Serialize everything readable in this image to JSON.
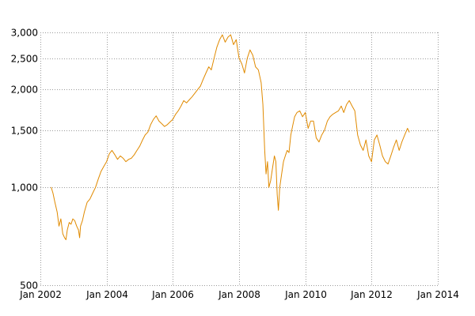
{
  "chart_data": {
    "type": "line",
    "title": "",
    "xlabel": "",
    "ylabel": "",
    "y_scale": "log",
    "xlim": [
      "2002-01-01",
      "2014-01-01"
    ],
    "ylim": [
      500,
      3000
    ],
    "grid": true,
    "x_ticks": [
      {
        "date": "2002-01-01",
        "label": "Jan 2002"
      },
      {
        "date": "2004-01-01",
        "label": "Jan 2004"
      },
      {
        "date": "2006-01-01",
        "label": "Jan 2006"
      },
      {
        "date": "2008-01-01",
        "label": "Jan 2008"
      },
      {
        "date": "2010-01-01",
        "label": "Jan 2010"
      },
      {
        "date": "2012-01-01",
        "label": "Jan 2012"
      },
      {
        "date": "2014-01-01",
        "label": "Jan 2014"
      }
    ],
    "y_ticks": [
      {
        "value": 500,
        "label": "500"
      },
      {
        "value": 1000,
        "label": "1,000"
      },
      {
        "value": 1500,
        "label": "1,500"
      },
      {
        "value": 2000,
        "label": "2,000"
      },
      {
        "value": 2500,
        "label": "2,500"
      },
      {
        "value": 3000,
        "label": "3,000"
      }
    ],
    "series": [
      {
        "color": "#e08a00",
        "points": [
          [
            "2002-05-01",
            1000
          ],
          [
            "2002-05-20",
            960
          ],
          [
            "2002-06-10",
            900
          ],
          [
            "2002-07-05",
            840
          ],
          [
            "2002-07-25",
            760
          ],
          [
            "2002-08-15",
            800
          ],
          [
            "2002-09-05",
            720
          ],
          [
            "2002-09-25",
            700
          ],
          [
            "2002-10-10",
            690
          ],
          [
            "2002-10-25",
            740
          ],
          [
            "2002-11-15",
            780
          ],
          [
            "2002-12-05",
            770
          ],
          [
            "2002-12-25",
            800
          ],
          [
            "2003-01-15",
            790
          ],
          [
            "2003-02-05",
            760
          ],
          [
            "2003-02-25",
            740
          ],
          [
            "2003-03-10",
            700
          ],
          [
            "2003-03-20",
            760
          ],
          [
            "2003-04-10",
            790
          ],
          [
            "2003-05-01",
            840
          ],
          [
            "2003-06-01",
            900
          ],
          [
            "2003-07-01",
            920
          ],
          [
            "2003-08-01",
            960
          ],
          [
            "2003-09-01",
            1000
          ],
          [
            "2003-10-01",
            1060
          ],
          [
            "2003-11-01",
            1120
          ],
          [
            "2003-12-01",
            1160
          ],
          [
            "2004-01-01",
            1200
          ],
          [
            "2004-02-01",
            1270
          ],
          [
            "2004-03-01",
            1300
          ],
          [
            "2004-04-01",
            1260
          ],
          [
            "2004-05-01",
            1220
          ],
          [
            "2004-06-01",
            1250
          ],
          [
            "2004-07-01",
            1230
          ],
          [
            "2004-08-01",
            1200
          ],
          [
            "2004-09-01",
            1220
          ],
          [
            "2004-10-01",
            1230
          ],
          [
            "2004-11-01",
            1260
          ],
          [
            "2004-12-01",
            1300
          ],
          [
            "2005-01-01",
            1340
          ],
          [
            "2005-02-01",
            1400
          ],
          [
            "2005-03-01",
            1450
          ],
          [
            "2005-04-01",
            1480
          ],
          [
            "2005-05-01",
            1560
          ],
          [
            "2005-06-01",
            1620
          ],
          [
            "2005-07-01",
            1660
          ],
          [
            "2005-08-01",
            1600
          ],
          [
            "2005-09-01",
            1570
          ],
          [
            "2005-10-01",
            1540
          ],
          [
            "2005-11-01",
            1560
          ],
          [
            "2005-12-01",
            1590
          ],
          [
            "2006-01-01",
            1620
          ],
          [
            "2006-02-01",
            1680
          ],
          [
            "2006-03-01",
            1720
          ],
          [
            "2006-04-01",
            1780
          ],
          [
            "2006-05-01",
            1850
          ],
          [
            "2006-06-01",
            1820
          ],
          [
            "2006-07-01",
            1860
          ],
          [
            "2006-08-01",
            1900
          ],
          [
            "2006-09-01",
            1950
          ],
          [
            "2006-10-01",
            2000
          ],
          [
            "2006-11-01",
            2050
          ],
          [
            "2006-12-01",
            2150
          ],
          [
            "2007-01-01",
            2250
          ],
          [
            "2007-02-01",
            2350
          ],
          [
            "2007-03-01",
            2300
          ],
          [
            "2007-04-01",
            2500
          ],
          [
            "2007-05-01",
            2700
          ],
          [
            "2007-06-01",
            2850
          ],
          [
            "2007-07-01",
            2950
          ],
          [
            "2007-08-01",
            2800
          ],
          [
            "2007-09-01",
            2900
          ],
          [
            "2007-10-01",
            2950
          ],
          [
            "2007-11-01",
            2750
          ],
          [
            "2007-12-01",
            2850
          ],
          [
            "2008-01-01",
            2500
          ],
          [
            "2008-02-01",
            2400
          ],
          [
            "2008-03-01",
            2250
          ],
          [
            "2008-04-01",
            2500
          ],
          [
            "2008-05-01",
            2650
          ],
          [
            "2008-06-01",
            2550
          ],
          [
            "2008-07-01",
            2350
          ],
          [
            "2008-08-01",
            2300
          ],
          [
            "2008-09-01",
            2100
          ],
          [
            "2008-09-20",
            1800
          ],
          [
            "2008-10-10",
            1300
          ],
          [
            "2008-10-25",
            1100
          ],
          [
            "2008-11-10",
            1200
          ],
          [
            "2008-11-25",
            1000
          ],
          [
            "2008-12-15",
            1050
          ],
          [
            "2009-01-05",
            1150
          ],
          [
            "2009-01-25",
            1250
          ],
          [
            "2009-02-10",
            1200
          ],
          [
            "2009-02-25",
            950
          ],
          [
            "2009-03-10",
            850
          ],
          [
            "2009-03-25",
            1000
          ],
          [
            "2009-04-15",
            1100
          ],
          [
            "2009-05-05",
            1200
          ],
          [
            "2009-05-25",
            1250
          ],
          [
            "2009-06-15",
            1300
          ],
          [
            "2009-07-05",
            1280
          ],
          [
            "2009-07-25",
            1450
          ],
          [
            "2009-08-15",
            1550
          ],
          [
            "2009-09-05",
            1650
          ],
          [
            "2009-10-01",
            1700
          ],
          [
            "2009-11-01",
            1720
          ],
          [
            "2009-12-01",
            1650
          ],
          [
            "2010-01-01",
            1700
          ],
          [
            "2010-02-01",
            1520
          ],
          [
            "2010-03-01",
            1600
          ],
          [
            "2010-04-01",
            1600
          ],
          [
            "2010-05-01",
            1420
          ],
          [
            "2010-06-01",
            1380
          ],
          [
            "2010-07-01",
            1450
          ],
          [
            "2010-08-01",
            1500
          ],
          [
            "2010-09-01",
            1600
          ],
          [
            "2010-10-01",
            1650
          ],
          [
            "2010-11-01",
            1680
          ],
          [
            "2010-12-01",
            1700
          ],
          [
            "2011-01-01",
            1720
          ],
          [
            "2011-02-01",
            1780
          ],
          [
            "2011-03-01",
            1700
          ],
          [
            "2011-04-01",
            1800
          ],
          [
            "2011-05-01",
            1850
          ],
          [
            "2011-06-01",
            1780
          ],
          [
            "2011-07-01",
            1720
          ],
          [
            "2011-08-01",
            1450
          ],
          [
            "2011-09-01",
            1350
          ],
          [
            "2011-10-01",
            1300
          ],
          [
            "2011-11-01",
            1400
          ],
          [
            "2011-12-01",
            1250
          ],
          [
            "2012-01-01",
            1200
          ],
          [
            "2012-02-01",
            1400
          ],
          [
            "2012-03-01",
            1450
          ],
          [
            "2012-04-01",
            1350
          ],
          [
            "2012-05-01",
            1250
          ],
          [
            "2012-06-01",
            1200
          ],
          [
            "2012-07-01",
            1180
          ],
          [
            "2012-08-01",
            1250
          ],
          [
            "2012-09-01",
            1330
          ],
          [
            "2012-10-01",
            1400
          ],
          [
            "2012-11-01",
            1300
          ],
          [
            "2012-12-01",
            1380
          ],
          [
            "2013-01-01",
            1450
          ],
          [
            "2013-02-01",
            1520
          ],
          [
            "2013-02-20",
            1480
          ]
        ]
      }
    ]
  }
}
